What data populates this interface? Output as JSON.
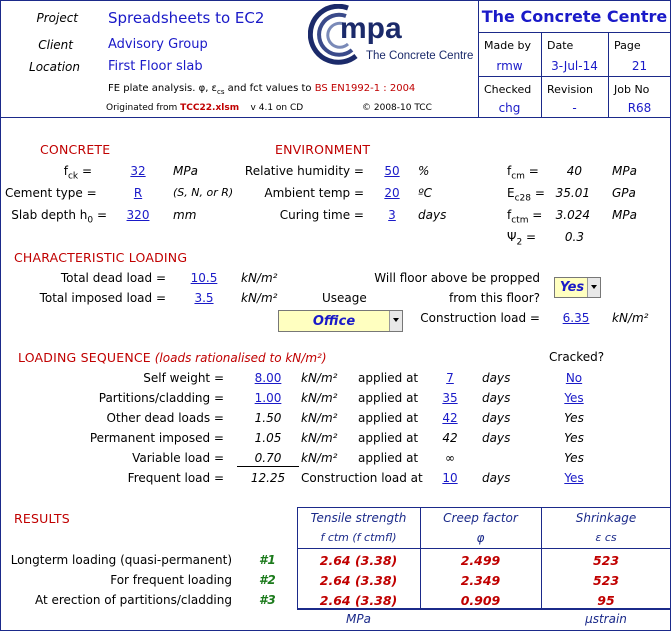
{
  "header": {
    "project_label": "Project",
    "project_value": "Spreadsheets to EC2",
    "client_label": "Client",
    "client_value": "Advisory Group",
    "location_label": "Location",
    "location_value": "First Floor slab",
    "description_prefix": "FE plate analysis. φ, ε",
    "description_sub": "cs",
    "description_mid": " and fct values to ",
    "description_standard": "BS EN1992-1 : 2004",
    "originated_prefix": "Originated from ",
    "originated_file": "TCC22.xlsm",
    "originated_version": "v 4.1 on CD",
    "copyright": "© 2008-10 TCC",
    "logo_text": "mpa",
    "logo_subtext": "The Concrete Centre",
    "brand": "The Concrete Centre",
    "made_by_label": "Made by",
    "made_by_value": "rmw",
    "date_label": "Date",
    "date_value": "3-Jul-14",
    "page_label": "Page",
    "page_value": "21",
    "checked_label": "Checked",
    "checked_value": "chg",
    "revision_label": "Revision",
    "revision_value": "-",
    "job_label": "Job No",
    "job_value": "R68"
  },
  "concrete": {
    "title": "CONCRETE",
    "fck_label": "f",
    "fck_sub": "ck",
    "fck_value": "32",
    "fck_unit": "MPa",
    "cement_label": "Cement type =",
    "cement_value": "R",
    "cement_options": "(S, N, or R)",
    "depth_label": "Slab depth h",
    "depth_sub": "0",
    "depth_value": "320",
    "depth_unit": "mm"
  },
  "environment": {
    "title": "ENVIRONMENT",
    "rh_label": "Relative humidity =",
    "rh_value": "50",
    "rh_unit": "%",
    "temp_label": "Ambient temp =",
    "temp_value": "20",
    "temp_unit": "ºC",
    "curing_label": "Curing time =",
    "curing_value": "3",
    "curing_unit": "days"
  },
  "derived": {
    "fcm_label": "f",
    "fcm_sub": "cm",
    "fcm_value": "40",
    "fcm_unit": "MPa",
    "ec28_label": "E",
    "ec28_sub": "c28",
    "ec28_value": "35.01",
    "ec28_unit": "GPa",
    "fctm_label": "f",
    "fctm_sub": "ctm",
    "fctm_value": "3.024",
    "fctm_unit": "MPa",
    "psi2_label": "Ψ",
    "psi2_sub": "2",
    "psi2_value": "0.3"
  },
  "characteristic": {
    "title": "CHARACTERISTIC LOADING",
    "dead_label": "Total dead load =",
    "dead_value": "10.5",
    "imposed_label": "Total imposed load =",
    "imposed_value": "3.5",
    "unit": "kN/m²",
    "useage_label": "Useage",
    "useage_value": "Office",
    "propped_q1": "Will floor above be propped",
    "propped_q2": "from this floor?",
    "propped_value": "Yes",
    "construction_label": "Construction load =",
    "construction_value": "6.35",
    "construction_unit": "kN/m²"
  },
  "sequence": {
    "title": "LOADING SEQUENCE",
    "subtitle": "(loads rationalised to kN/m²)",
    "cracked_header": "Cracked?",
    "unit": "kN/m²",
    "applied_at": "applied at",
    "days": "days",
    "rows": [
      {
        "label": "Self weight =",
        "value": "8.00",
        "day": "7",
        "cracked": "No"
      },
      {
        "label": "Partitions/cladding =",
        "value": "1.00",
        "day": "35",
        "cracked": "Yes"
      },
      {
        "label": "Other dead loads =",
        "value": "1.50",
        "day": "42",
        "cracked": "Yes"
      },
      {
        "label": "Permanent imposed =",
        "value": "1.05",
        "day": "42",
        "cracked": "Yes"
      },
      {
        "label": "Variable load =",
        "value": "0.70",
        "day": "∞",
        "cracked": "Yes"
      }
    ],
    "frequent_label": "Frequent load =",
    "frequent_value": "12.25",
    "construction_at": "Construction load at",
    "construction_day": "10",
    "construction_cracked": "Yes"
  },
  "results": {
    "title": "RESULTS",
    "col1_header": "Tensile strength",
    "col1_sub": "f ctm (f ctmfl)",
    "col2_header": "Creep factor",
    "col2_sub": "φ",
    "col3_header": "Shrinkage",
    "col3_sub": "ε cs",
    "rows": [
      {
        "label": "Longterm loading (quasi-permanent)",
        "num": "#1",
        "tensile": "2.64 (3.38)",
        "creep": "2.499",
        "shrinkage": "523"
      },
      {
        "label": "For frequent loading",
        "num": "#2",
        "tensile": "2.64 (3.38)",
        "creep": "2.349",
        "shrinkage": "523"
      },
      {
        "label": "At erection of partitions/cladding",
        "num": "#3",
        "tensile": "2.64 (3.38)",
        "creep": "0.909",
        "shrinkage": "95"
      }
    ],
    "unit1": "MPa",
    "unit3": "μstrain"
  }
}
